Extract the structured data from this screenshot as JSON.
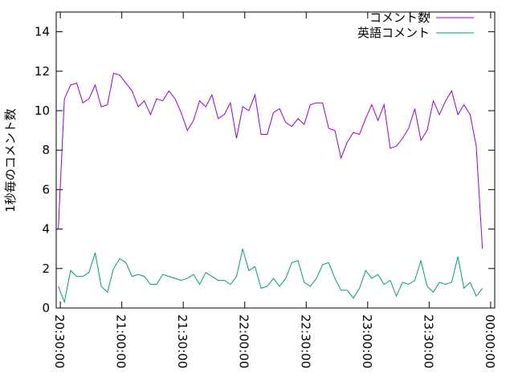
{
  "chart_data": {
    "type": "line",
    "ylabel": "1秒毎のコメント数",
    "x": [
      "20:29:00",
      "20:32:00",
      "20:35:00",
      "20:38:00",
      "20:41:00",
      "20:44:00",
      "20:47:00",
      "20:50:00",
      "20:53:00",
      "20:56:00",
      "20:59:00",
      "21:02:00",
      "21:05:00",
      "21:08:00",
      "21:11:00",
      "21:14:00",
      "21:17:00",
      "21:20:00",
      "21:23:00",
      "21:26:00",
      "21:29:00",
      "21:32:00",
      "21:35:00",
      "21:38:00",
      "21:41:00",
      "21:44:00",
      "21:47:00",
      "21:50:00",
      "21:53:00",
      "21:56:00",
      "21:59:00",
      "22:02:00",
      "22:05:00",
      "22:08:00",
      "22:11:00",
      "22:14:00",
      "22:17:00",
      "22:20:00",
      "22:23:00",
      "22:26:00",
      "22:29:00",
      "22:32:00",
      "22:35:00",
      "22:38:00",
      "22:41:00",
      "22:44:00",
      "22:47:00",
      "22:50:00",
      "22:53:00",
      "22:56:00",
      "22:59:00",
      "23:02:00",
      "23:05:00",
      "23:08:00",
      "23:11:00",
      "23:14:00",
      "23:17:00",
      "23:20:00",
      "23:23:00",
      "23:26:00",
      "23:29:00",
      "23:32:00",
      "23:35:00",
      "23:38:00",
      "23:41:00",
      "23:44:00",
      "23:47:00",
      "23:50:00",
      "23:53:00",
      "23:56:00"
    ],
    "series": [
      {
        "name": "コメント数",
        "color": "#9400d3",
        "values": [
          4.0,
          10.6,
          11.3,
          11.4,
          10.4,
          10.6,
          11.3,
          10.2,
          10.3,
          11.9,
          11.8,
          11.4,
          11.0,
          10.2,
          10.5,
          9.8,
          10.6,
          10.5,
          11.0,
          10.6,
          9.9,
          9.0,
          9.5,
          10.5,
          10.2,
          10.8,
          9.6,
          9.8,
          10.4,
          8.6,
          10.2,
          10.0,
          10.8,
          8.8,
          8.8,
          9.9,
          10.1,
          9.4,
          9.2,
          9.6,
          9.3,
          10.3,
          10.4,
          10.4,
          9.1,
          9.0,
          7.6,
          8.4,
          8.9,
          8.8,
          9.6,
          10.3,
          9.5,
          10.3,
          8.1,
          8.2,
          8.6,
          9.1,
          10.1,
          8.5,
          9.0,
          10.5,
          9.8,
          10.5,
          11.0,
          9.8,
          10.3,
          9.8,
          8.2,
          3.0
        ]
      },
      {
        "name": "英語コメント",
        "color": "#009e73",
        "values": [
          1.1,
          0.3,
          1.9,
          1.6,
          1.6,
          1.8,
          2.8,
          1.1,
          0.8,
          2.0,
          2.5,
          2.3,
          1.6,
          1.7,
          1.6,
          1.2,
          1.2,
          1.7,
          1.6,
          1.5,
          1.4,
          1.5,
          1.7,
          1.2,
          1.8,
          1.6,
          1.4,
          1.4,
          1.2,
          1.6,
          3.0,
          1.9,
          2.1,
          1.0,
          1.1,
          1.5,
          1.1,
          1.5,
          2.3,
          2.4,
          1.3,
          1.1,
          1.5,
          2.2,
          2.3,
          1.5,
          0.9,
          0.9,
          0.5,
          1.0,
          1.9,
          1.5,
          1.7,
          1.2,
          1.4,
          0.6,
          1.3,
          1.2,
          1.4,
          2.4,
          1.1,
          0.8,
          1.3,
          1.2,
          1.3,
          2.6,
          1.0,
          1.3,
          0.6,
          1.0
        ]
      }
    ],
    "xlim": [
      "20:28:00",
      "00:02:00"
    ],
    "xticks": [
      "20:30:00",
      "21:00:00",
      "21:30:00",
      "22:00:00",
      "22:30:00",
      "23:00:00",
      "23:30:00",
      "00:00:00"
    ],
    "ylim": [
      0,
      15
    ],
    "yticks": [
      0,
      2,
      4,
      6,
      8,
      10,
      12,
      14
    ],
    "legend": "top-right"
  }
}
